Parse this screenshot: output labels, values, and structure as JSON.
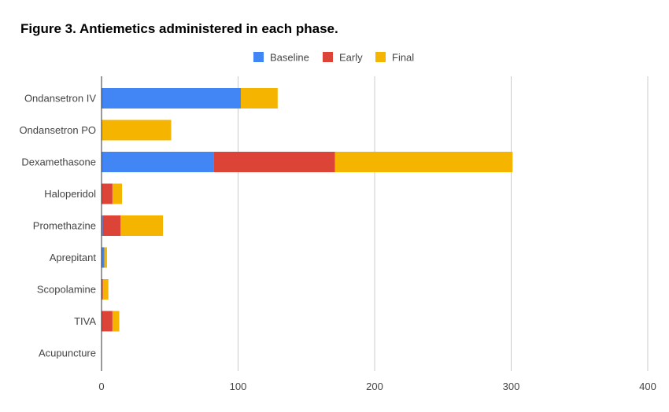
{
  "chart_data": {
    "type": "bar",
    "orientation": "horizontal",
    "stacked": true,
    "title": "Figure 3. Antiemetics administered in each phase.",
    "xlabel": "",
    "ylabel": "",
    "xlim": [
      0,
      400
    ],
    "ticks": [
      0,
      100,
      200,
      300,
      400
    ],
    "grid": true,
    "legend_position": "top",
    "categories": [
      "Ondansetron IV",
      "Ondansetron PO",
      "Dexamethasone",
      "Haloperidol",
      "Promethazine",
      "Aprepitant",
      "Scopolamine",
      "TIVA",
      "Acupuncture"
    ],
    "series": [
      {
        "name": "Baseline",
        "color": "#4285f4",
        "values": [
          102,
          0,
          82,
          0,
          1,
          2,
          0,
          0,
          0
        ]
      },
      {
        "name": "Early",
        "color": "#db4437",
        "values": [
          0,
          0,
          89,
          8,
          13,
          0,
          1,
          8,
          0
        ]
      },
      {
        "name": "Final",
        "color": "#f4b400",
        "values": [
          27,
          51,
          130,
          7,
          31,
          2,
          4,
          5,
          0
        ]
      }
    ]
  }
}
